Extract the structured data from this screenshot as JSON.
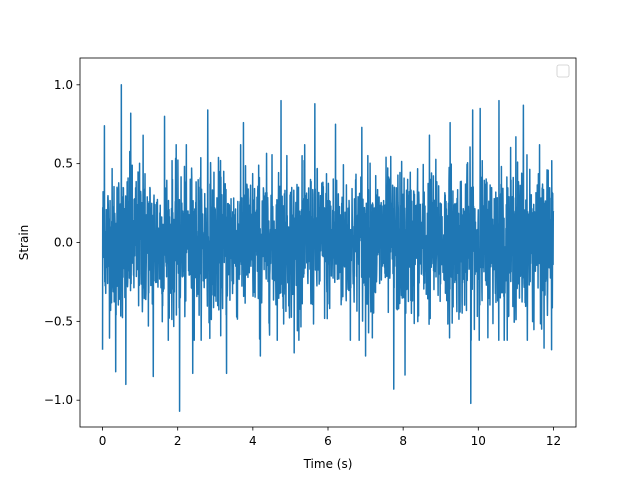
{
  "chart_data": {
    "type": "line",
    "title": "",
    "xlabel": "Time (s)",
    "ylabel": "Strain",
    "xlim": [
      -0.6,
      12.6
    ],
    "ylim": [
      -1.17,
      1.17
    ],
    "x_ticks": [
      0,
      2,
      4,
      6,
      8,
      10,
      12
    ],
    "x_tick_labels": [
      "0",
      "2",
      "4",
      "6",
      "8",
      "10",
      "12"
    ],
    "y_ticks": [
      -1.0,
      -0.5,
      0.0,
      0.5,
      1.0
    ],
    "y_tick_labels": [
      "−1.0",
      "−0.5",
      "0.0",
      "0.5",
      "1.0"
    ],
    "grid": false,
    "legend": {
      "placement": "top-right",
      "entries": []
    },
    "series": [
      {
        "color": "#1f77b4",
        "x_range": [
          0,
          12
        ],
        "description_of_values": "dense noise signal",
        "typical_amplitude": 0.42,
        "notable_points": [
          {
            "x": 0.0,
            "y": -0.68
          },
          {
            "x": 0.05,
            "y": 0.74
          },
          {
            "x": 0.35,
            "y": -0.82
          },
          {
            "x": 0.5,
            "y": 1.0
          },
          {
            "x": 0.62,
            "y": -0.9
          },
          {
            "x": 0.75,
            "y": 0.82
          },
          {
            "x": 1.08,
            "y": 0.68
          },
          {
            "x": 1.35,
            "y": -0.85
          },
          {
            "x": 1.65,
            "y": 0.8
          },
          {
            "x": 2.05,
            "y": -1.07
          },
          {
            "x": 2.4,
            "y": -0.83
          },
          {
            "x": 2.8,
            "y": 0.84
          },
          {
            "x": 3.3,
            "y": -0.83
          },
          {
            "x": 3.75,
            "y": 0.76
          },
          {
            "x": 4.2,
            "y": -0.72
          },
          {
            "x": 4.75,
            "y": 0.9
          },
          {
            "x": 5.1,
            "y": -0.7
          },
          {
            "x": 5.65,
            "y": 0.88
          },
          {
            "x": 6.2,
            "y": 0.75
          },
          {
            "x": 6.9,
            "y": 0.73
          },
          {
            "x": 7.0,
            "y": -0.72
          },
          {
            "x": 7.75,
            "y": -0.93
          },
          {
            "x": 8.05,
            "y": 0.72
          },
          {
            "x": 8.05,
            "y": -0.84
          },
          {
            "x": 8.7,
            "y": 0.68
          },
          {
            "x": 9.25,
            "y": 0.76
          },
          {
            "x": 9.8,
            "y": -1.02
          },
          {
            "x": 9.85,
            "y": 0.84
          },
          {
            "x": 10.05,
            "y": 0.85
          },
          {
            "x": 10.55,
            "y": 0.9
          },
          {
            "x": 11.0,
            "y": 0.67
          },
          {
            "x": 11.2,
            "y": 0.87
          },
          {
            "x": 11.75,
            "y": -0.67
          },
          {
            "x": 11.95,
            "y": -0.68
          },
          {
            "x": 12.0,
            "y": 0.2
          }
        ]
      }
    ]
  }
}
